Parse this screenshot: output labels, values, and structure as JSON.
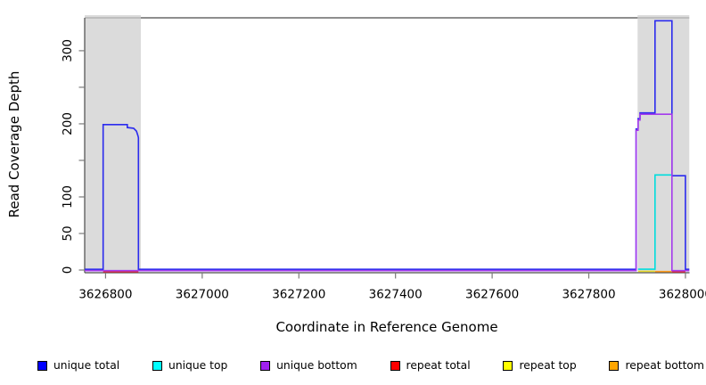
{
  "chart_data": {
    "type": "line",
    "title": "",
    "xlabel": "Coordinate in Reference Genome",
    "ylabel": "Read Coverage Depth",
    "x_axis": {
      "tick_values": [
        3626800,
        3627000,
        3627200,
        3627400,
        3627600,
        3627800,
        3628000
      ],
      "tick_labels": [
        "3626800",
        "3627000",
        "3627200",
        "3627400",
        "3627600",
        "3627800",
        "3628000"
      ],
      "range": [
        3626757,
        3628008
      ]
    },
    "y_axis": {
      "ticks": [
        {
          "v": 0,
          "label": "0"
        },
        {
          "v": 50,
          "label": "50"
        },
        {
          "v": 100,
          "label": "100"
        },
        {
          "v": 150,
          "label": ""
        },
        {
          "v": 200,
          "label": "200"
        },
        {
          "v": 250,
          "label": ""
        },
        {
          "v": 300,
          "label": "300"
        }
      ],
      "range": [
        0,
        345
      ]
    },
    "shaded_regions": [
      {
        "x1": 3626757,
        "x2": 3626873,
        "fill": "#DBDBDB"
      },
      {
        "x1": 3627901,
        "x2": 3628008,
        "fill": "#DBDBDB"
      }
    ],
    "series": [
      {
        "name": "repeat top",
        "color": "#E8D92E",
        "segments": [
          [
            [
              3627902,
              0
            ],
            [
              3627937,
              0
            ]
          ]
        ]
      },
      {
        "name": "repeat total",
        "color": "#E02B40",
        "segments": [
          [
            [
              3626795,
              0
            ],
            [
              3626868,
              0
            ]
          ],
          [
            [
              3627972,
              0
            ],
            [
              3628000,
              0
            ]
          ]
        ]
      },
      {
        "name": "repeat bottom",
        "color": "#FF9D1E",
        "segments": [
          [
            [
              3627937,
              0
            ],
            [
              3627972,
              0
            ]
          ]
        ]
      },
      {
        "name": "unique top",
        "color": "#00DCDC",
        "segments": [
          [
            [
              3627902,
              0
            ],
            [
              3627937,
              0
            ],
            [
              3627937,
              129
            ],
            [
              3627972,
              129
            ]
          ]
        ]
      },
      {
        "name": "unique total",
        "color": "#2B2BEE",
        "segments": [
          [
            [
              3626757,
              0
            ],
            [
              3626795,
              0
            ],
            [
              3626795,
              198
            ],
            [
              3626845,
              198
            ],
            [
              3626845,
              194
            ],
            [
              3626858,
              193
            ],
            [
              3626864,
              189
            ],
            [
              3626867,
              183
            ],
            [
              3626868,
              180
            ],
            [
              3626868,
              0
            ],
            [
              3627898,
              0
            ],
            [
              3627898,
              192
            ],
            [
              3627902,
              192
            ],
            [
              3627902,
              206
            ],
            [
              3627906,
              206
            ],
            [
              3627906,
              214
            ],
            [
              3627937,
              214
            ],
            [
              3627937,
              340
            ],
            [
              3627972,
              340
            ],
            [
              3627972,
              128
            ],
            [
              3628000,
              128
            ],
            [
              3628000,
              0
            ],
            [
              3628008,
              0
            ]
          ]
        ]
      },
      {
        "name": "unique bottom",
        "color": "#A43BEC",
        "segments": [
          [
            [
              3626757,
              0
            ],
            [
              3627898,
              0
            ],
            [
              3627898,
              192
            ],
            [
              3627902,
              192
            ],
            [
              3627902,
              206
            ],
            [
              3627906,
              206
            ],
            [
              3627906,
              214
            ],
            [
              3627972,
              214
            ],
            [
              3627972,
              0
            ],
            [
              3628008,
              0
            ]
          ]
        ]
      }
    ],
    "legend": [
      {
        "label": "unique total",
        "swatch": "#0000FF"
      },
      {
        "label": "unique top",
        "swatch": "#00FFFF"
      },
      {
        "label": "unique bottom",
        "swatch": "#A020F0"
      },
      {
        "label": "repeat total",
        "swatch": "#FF0000"
      },
      {
        "label": "repeat top",
        "swatch": "#FFFF00"
      },
      {
        "label": "repeat bottom",
        "swatch": "#FFA500"
      }
    ],
    "legend_position": "bottom"
  }
}
